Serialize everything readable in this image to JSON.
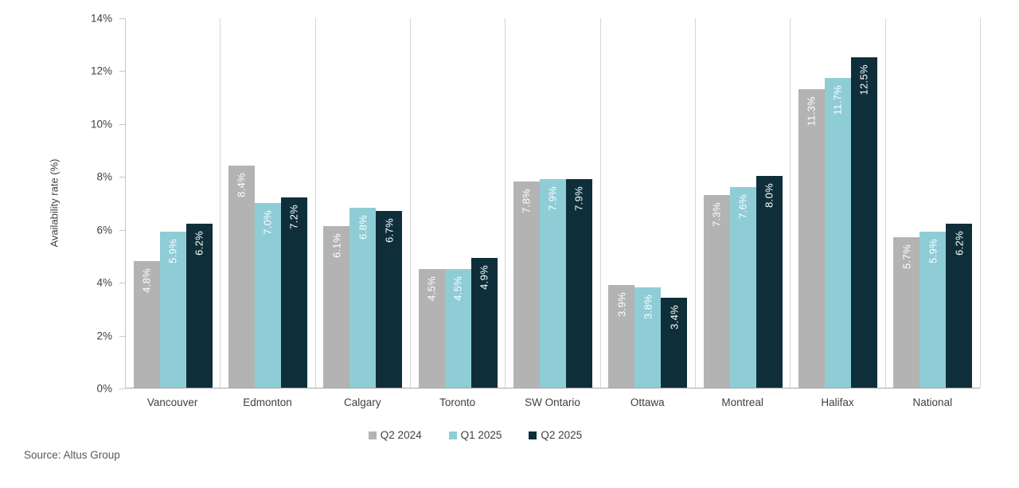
{
  "source": "Source: Altus Group",
  "chart_data": {
    "type": "bar",
    "title": "",
    "xlabel": "",
    "ylabel": "Availability rate (%)",
    "ylim": [
      0,
      14
    ],
    "ytick_step": 2,
    "ytick_labels": [
      "0%",
      "2%",
      "4%",
      "6%",
      "8%",
      "10%",
      "12%",
      "14%"
    ],
    "grid": "vertical-category-separators",
    "legend_position": "bottom-center",
    "categories": [
      "Vancouver",
      "Edmonton",
      "Calgary",
      "Toronto",
      "SW Ontario",
      "Ottawa",
      "Montreal",
      "Halifax",
      "National"
    ],
    "series": [
      {
        "name": "Q2 2024",
        "color": "#b3b3b3",
        "values": [
          4.8,
          8.4,
          6.1,
          4.5,
          7.8,
          3.9,
          7.3,
          11.3,
          5.7
        ]
      },
      {
        "name": "Q1 2025",
        "color": "#8ecdd6",
        "values": [
          5.9,
          7.0,
          6.8,
          4.5,
          7.9,
          3.8,
          7.6,
          11.7,
          5.9
        ]
      },
      {
        "name": "Q2 2025",
        "color": "#0e2f3a",
        "values": [
          6.2,
          7.2,
          6.7,
          4.9,
          7.9,
          3.4,
          8.0,
          12.5,
          6.2
        ]
      }
    ],
    "bar_label_format": "value with one decimal + %",
    "bar_label_color": "#ffffff"
  }
}
